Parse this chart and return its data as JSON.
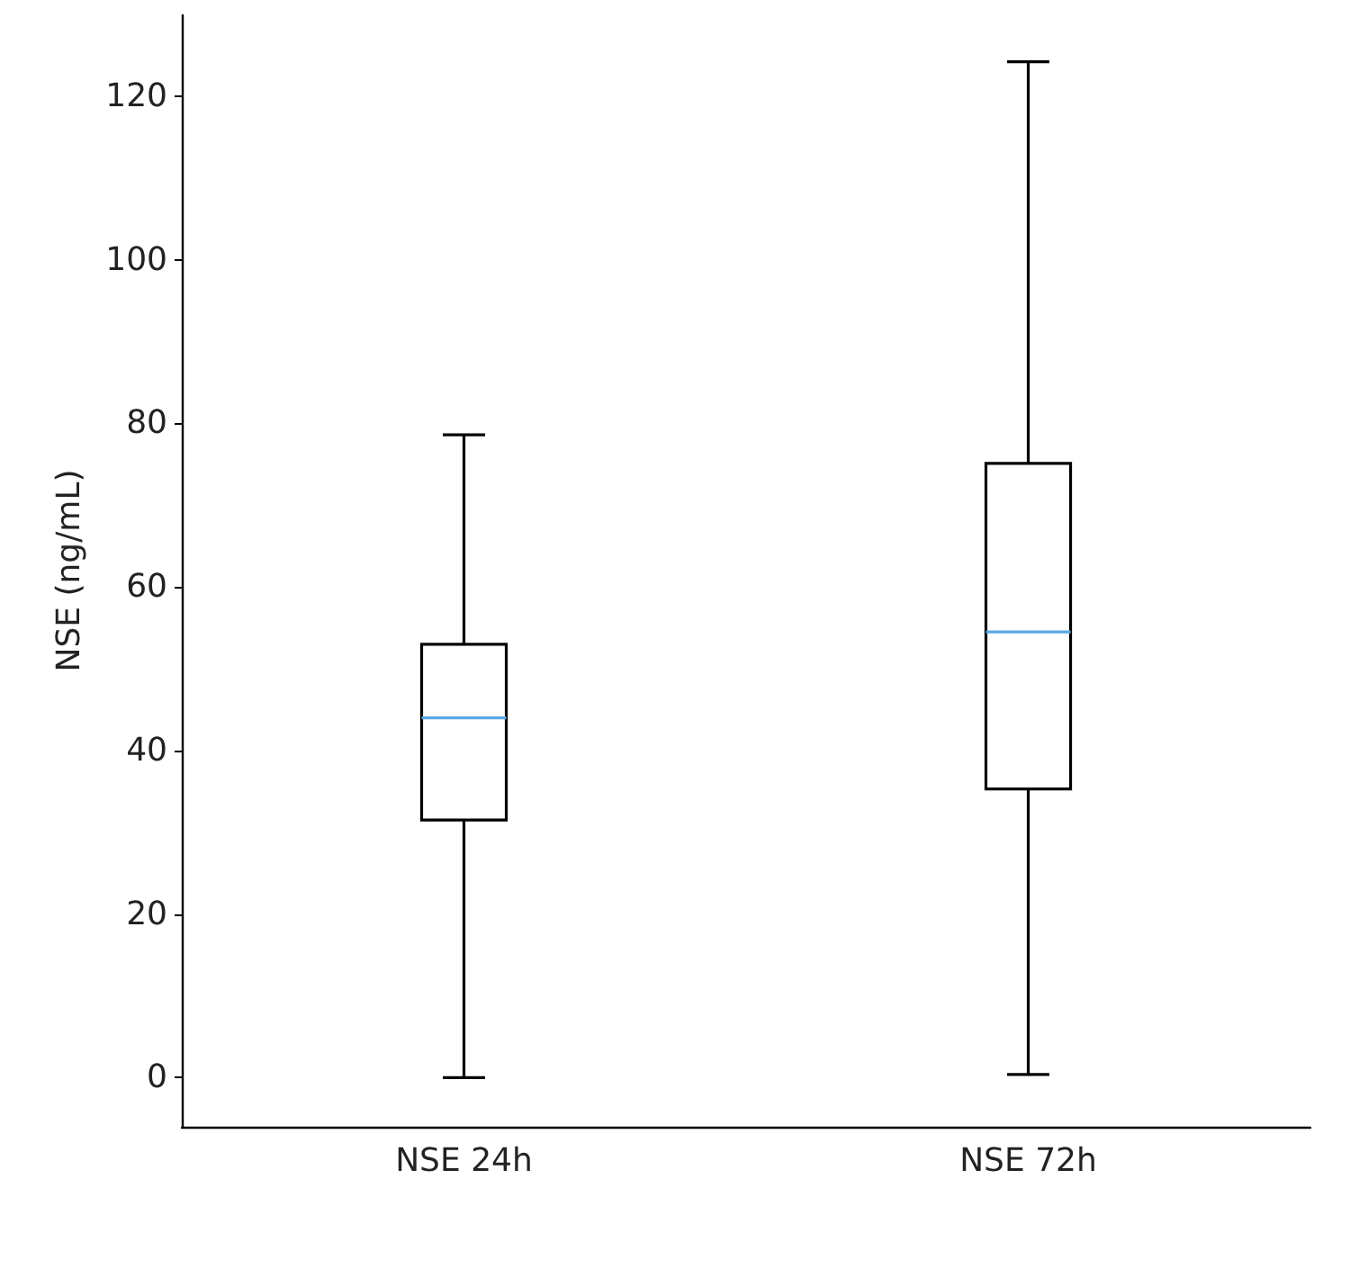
{
  "chart_data": {
    "type": "box",
    "ylabel": "NSE (ng/mL)",
    "categories": [
      "NSE 24h",
      "NSE 72h"
    ],
    "series": [
      {
        "color": "#000000",
        "boxes": [
          {
            "low": 0,
            "q1": 31.5,
            "median": 44,
            "q3": 53,
            "high": 78.6
          },
          {
            "low": 0.4,
            "q1": 35.3,
            "median": 54.5,
            "q3": 75.1,
            "high": 124.2
          }
        ]
      }
    ],
    "ylim": [
      -6,
      130
    ],
    "yticks": [
      0,
      20,
      40,
      60,
      80,
      100,
      120
    ],
    "grid": false
  }
}
